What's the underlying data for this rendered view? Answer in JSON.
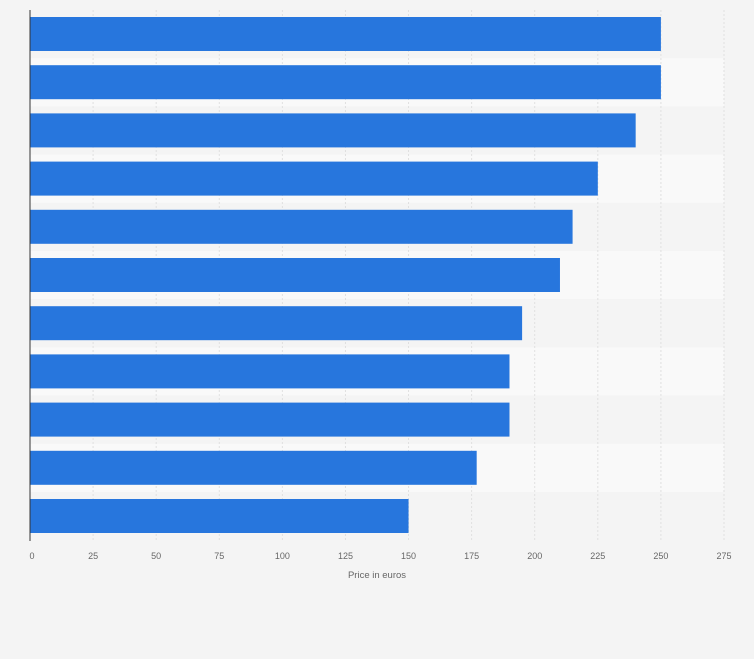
{
  "chart_data": {
    "type": "bar",
    "orientation": "horizontal",
    "categories": [
      "",
      "",
      "",
      "",
      "",
      "",
      "",
      "",
      "",
      "",
      ""
    ],
    "values": [
      250,
      250,
      240,
      225,
      215,
      210,
      195,
      190,
      190,
      177,
      150
    ],
    "title": "",
    "xlabel": "Price in euros",
    "ylabel": "",
    "xlim": [
      0,
      275
    ],
    "xticks": [
      0,
      25,
      50,
      75,
      100,
      125,
      150,
      175,
      200,
      225,
      250,
      275
    ],
    "grid": true,
    "legend": "none",
    "bar_color": "#2776dd",
    "band_colors": [
      "#f4f4f4",
      "#f9f9f9"
    ]
  }
}
